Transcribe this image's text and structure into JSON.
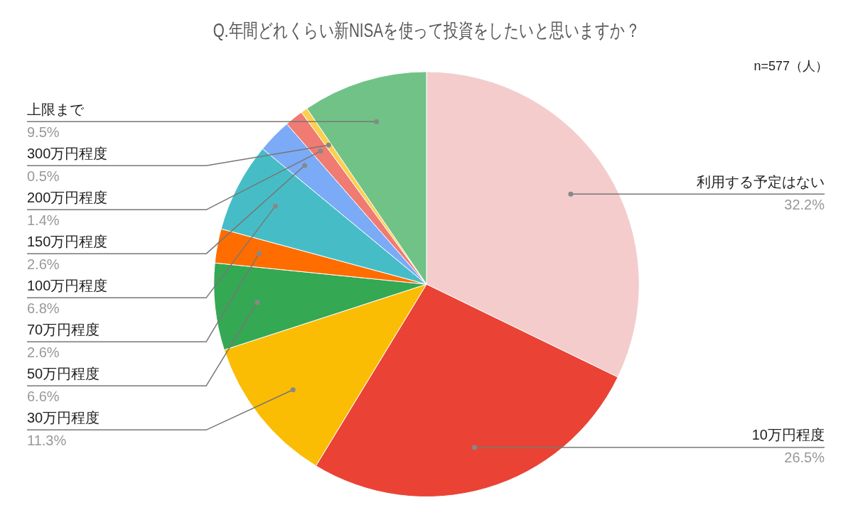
{
  "chart_data": {
    "type": "pie",
    "title": "Q.年間どれくらい新NISAを使って投資をしたいと思いますか？",
    "annotations": [
      "n=577（人）"
    ],
    "categories": [
      "利用する予定はない",
      "10万円程度",
      "30万円程度",
      "50万円程度",
      "70万円程度",
      "100万円程度",
      "150万円程度",
      "200万円程度",
      "300万円程度",
      "上限まで"
    ],
    "values": [
      32.2,
      26.5,
      11.3,
      6.6,
      2.6,
      6.8,
      2.6,
      1.4,
      0.5,
      9.5
    ],
    "colors": [
      "#f4cccc",
      "#ea4335",
      "#fbbc04",
      "#34a853",
      "#ff6d01",
      "#46bdc6",
      "#7baaf7",
      "#f07b72",
      "#fcd04f",
      "#71c287"
    ],
    "value_labels": [
      "32.2%",
      "26.5%",
      "11.3%",
      "6.6%",
      "2.6%",
      "6.8%",
      "2.6%",
      "1.4%",
      "0.5%",
      "9.5%"
    ],
    "legend": false
  }
}
